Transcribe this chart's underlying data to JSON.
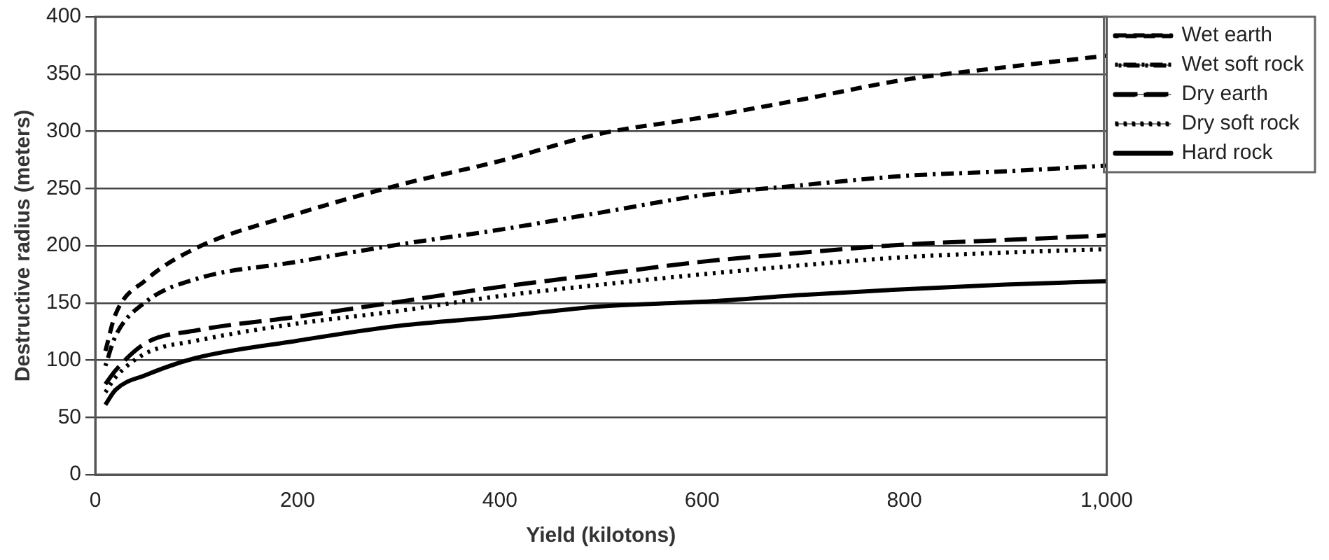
{
  "chart_data": {
    "type": "line",
    "xlabel": "Yield (kilotons)",
    "ylabel": "Destructive radius (meters)",
    "x": [
      10,
      20,
      50,
      100,
      200,
      300,
      400,
      500,
      600,
      700,
      800,
      900,
      1000
    ],
    "series": [
      {
        "name": "Wet earth",
        "color": "#000000",
        "line_style": "dashed",
        "values": [
          108,
          140,
          170,
          198,
          228,
          253,
          274,
          298,
          312,
          328,
          345,
          356,
          366
        ]
      },
      {
        "name": "Wet soft rock",
        "color": "#000000",
        "line_style": "dashdot",
        "values": [
          95,
          121,
          151,
          171,
          186,
          201,
          214,
          229,
          244,
          253,
          261,
          265,
          270
        ]
      },
      {
        "name": "Dry earth",
        "color": "#000000",
        "line_style": "longdash",
        "values": [
          79,
          91,
          115,
          126,
          138,
          151,
          164,
          175,
          186,
          194,
          201,
          205,
          209
        ]
      },
      {
        "name": "Dry soft rock",
        "color": "#000000",
        "line_style": "dotted",
        "values": [
          72,
          85,
          106,
          117,
          132,
          143,
          156,
          166,
          175,
          183,
          190,
          194,
          197
        ]
      },
      {
        "name": "Hard rock",
        "color": "#000000",
        "line_style": "solid",
        "values": [
          61,
          74,
          87,
          102,
          117,
          130,
          138,
          147,
          151,
          157,
          162,
          166,
          169
        ]
      }
    ],
    "xlim": [
      0,
      1000
    ],
    "xticks": [
      0,
      200,
      400,
      600,
      800,
      {
        "value": 1000,
        "label": "1,000"
      }
    ],
    "ylim": [
      0,
      400
    ],
    "yticks": [
      0,
      50,
      100,
      150,
      200,
      250,
      300,
      350,
      400
    ],
    "grid": "y",
    "legend": "top right",
    "marker": "none"
  }
}
